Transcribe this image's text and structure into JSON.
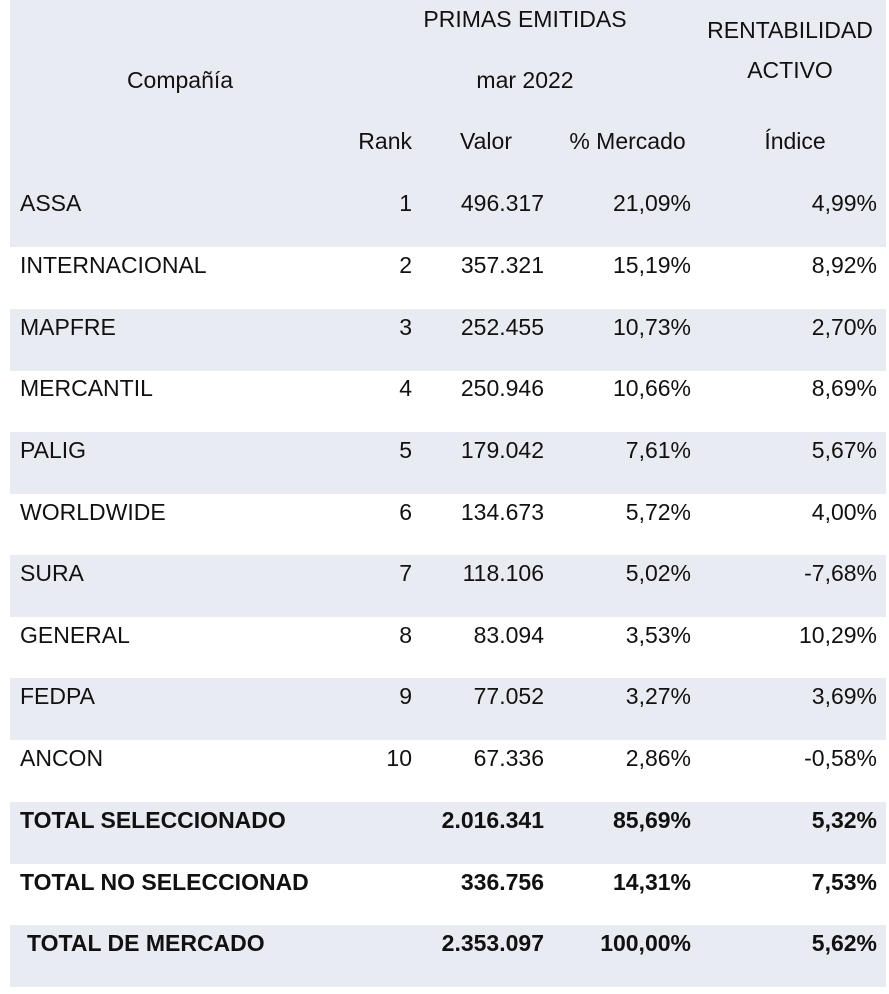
{
  "header": {
    "company_label": "Compañía",
    "primas_label": "PRIMAS EMITIDAS",
    "period_label": "mar 2022",
    "rentabilidad_line1": "RENTABILIDAD",
    "rentabilidad_line2": "ACTIVO",
    "rank_label": "Rank",
    "valor_label": "Valor",
    "mercado_label": "% Mercado",
    "indice_label": "Índice"
  },
  "rows": [
    {
      "company": "ASSA",
      "rank": "1",
      "valor": "496.317",
      "mercado": "21,09%",
      "indice": "4,99%"
    },
    {
      "company": "INTERNACIONAL",
      "rank": "2",
      "valor": "357.321",
      "mercado": "15,19%",
      "indice": "8,92%"
    },
    {
      "company": "MAPFRE",
      "rank": "3",
      "valor": "252.455",
      "mercado": "10,73%",
      "indice": "2,70%"
    },
    {
      "company": "MERCANTIL",
      "rank": "4",
      "valor": "250.946",
      "mercado": "10,66%",
      "indice": "8,69%"
    },
    {
      "company": "PALIG",
      "rank": "5",
      "valor": "179.042",
      "mercado": "7,61%",
      "indice": "5,67%"
    },
    {
      "company": "WORLDWIDE",
      "rank": "6",
      "valor": "134.673",
      "mercado": "5,72%",
      "indice": "4,00%"
    },
    {
      "company": "SURA",
      "rank": "7",
      "valor": "118.106",
      "mercado": "5,02%",
      "indice": "-7,68%"
    },
    {
      "company": "GENERAL",
      "rank": "8",
      "valor": "83.094",
      "mercado": "3,53%",
      "indice": "10,29%"
    },
    {
      "company": "FEDPA",
      "rank": "9",
      "valor": "77.052",
      "mercado": "3,27%",
      "indice": "3,69%"
    },
    {
      "company": "ANCON",
      "rank": "10",
      "valor": "67.336",
      "mercado": "2,86%",
      "indice": "-0,58%"
    }
  ],
  "totals": [
    {
      "label": "TOTAL SELECCIONADO",
      "valor": "2.016.341",
      "mercado": "85,69%",
      "indice": "5,32%"
    },
    {
      "label": "TOTAL NO SELECCIONAD",
      "valor": "336.756",
      "mercado": "14,31%",
      "indice": "7,53%"
    },
    {
      "label": "TOTAL DE MERCADO",
      "valor": "2.353.097",
      "mercado": "100,00%",
      "indice": "5,62%"
    }
  ]
}
